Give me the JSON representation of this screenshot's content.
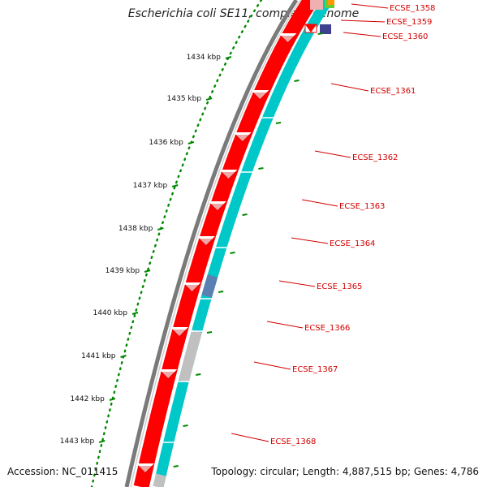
{
  "title": "Escherichia coli SE11, complete genome",
  "footer": {
    "accession": "Accession: NC_011415",
    "topology": "Topology: circular; Length: 4,887,515 bp; Genes: 4,786"
  },
  "colors": {
    "forward_cds": "#ff0000",
    "reverse_cds": "#00c8c8",
    "grey_feature": "#c0c0c0",
    "blue_feature": "#5b7fb0",
    "purple_feature": "#404090",
    "backbone": "#7a7a7a",
    "kbp_ticks": "#008800",
    "gene_labels": "#d40000"
  },
  "scale_marks": [
    {
      "kbp": 1434,
      "label": "1434 kbp"
    },
    {
      "kbp": 1435,
      "label": "1435 kbp"
    },
    {
      "kbp": 1436,
      "label": "1436 kbp"
    },
    {
      "kbp": 1437,
      "label": "1437 kbp"
    },
    {
      "kbp": 1438,
      "label": "1438 kbp"
    },
    {
      "kbp": 1439,
      "label": "1439 kbp"
    },
    {
      "kbp": 1440,
      "label": "1440 kbp"
    },
    {
      "kbp": 1441,
      "label": "1441 kbp"
    },
    {
      "kbp": 1442,
      "label": "1442 kbp"
    },
    {
      "kbp": 1443,
      "label": "1443 kbp"
    }
  ],
  "gene_labels": [
    "ECSE_1358",
    "ECSE_1359",
    "ECSE_1360",
    "ECSE_1361",
    "ECSE_1362",
    "ECSE_1363",
    "ECSE_1364",
    "ECSE_1365",
    "ECSE_1366",
    "ECSE_1367",
    "ECSE_1368"
  ]
}
